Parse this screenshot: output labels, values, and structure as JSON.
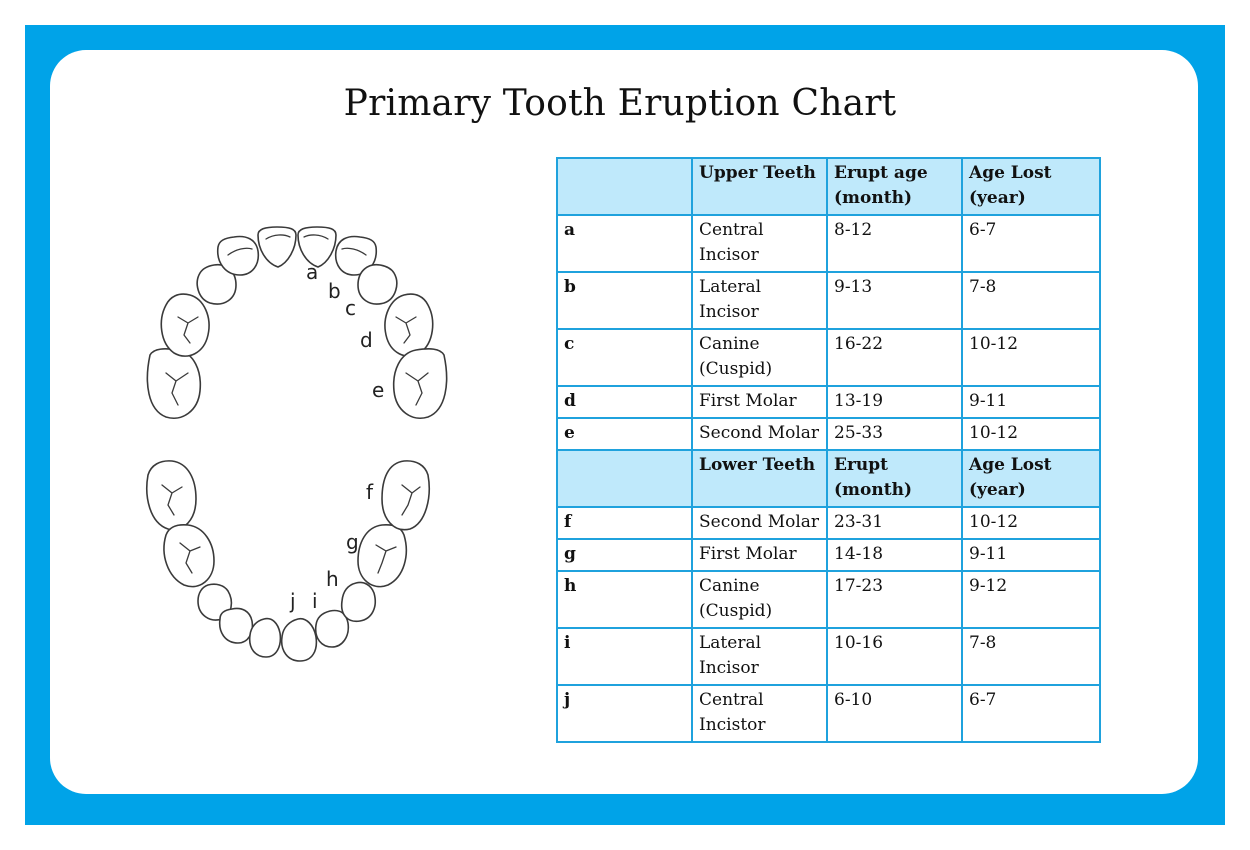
{
  "title": "Primary Tooth Eruption Chart",
  "colors": {
    "frame": "#00a3e8",
    "header_fill": "#bfe9fb",
    "grid": "#1fa2dd"
  },
  "diagram": {
    "upper_labels": [
      "a",
      "b",
      "c",
      "d",
      "e"
    ],
    "lower_labels": [
      "f",
      "g",
      "h",
      "i",
      "j"
    ]
  },
  "table": {
    "upper_header": [
      "",
      "Upper Teeth",
      "Erupt age (month)",
      "Age Lost (year)"
    ],
    "upper_rows": [
      [
        "a",
        "Central Incisor",
        "8-12",
        "6-7"
      ],
      [
        "b",
        "Lateral Incisor",
        "9-13",
        "7-8"
      ],
      [
        "c",
        "Canine (Cuspid)",
        "16-22",
        "10-12"
      ],
      [
        "d",
        "First Molar",
        "13-19",
        "9-11"
      ],
      [
        "e",
        "Second Molar",
        "25-33",
        "10-12"
      ]
    ],
    "lower_header": [
      "",
      "Lower Teeth",
      "Erupt (month)",
      "Age Lost (year)"
    ],
    "lower_rows": [
      [
        "f",
        "Second Molar",
        "23-31",
        "10-12"
      ],
      [
        "g",
        "First Molar",
        "14-18",
        "9-11"
      ],
      [
        "h",
        "Canine (Cuspid)",
        "17-23",
        "9-12"
      ],
      [
        "i",
        "Lateral Incisor",
        "10-16",
        "7-8"
      ],
      [
        "j",
        "Central Incistor",
        "6-10",
        "6-7"
      ]
    ]
  }
}
